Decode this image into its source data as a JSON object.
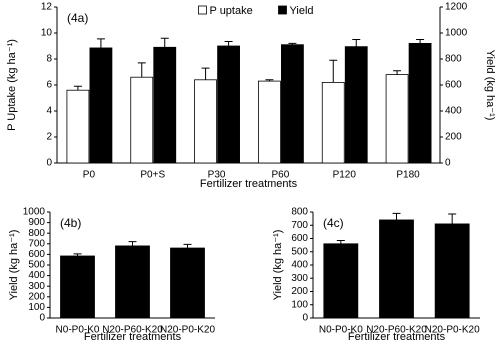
{
  "chart_data": [
    {
      "type": "bar",
      "panel_label": "(4a)",
      "x_label": "Fertilizer treatments",
      "y_label": "P Uptake (kg ha⁻¹)",
      "y2_label": "Yield (kg ha⁻¹)",
      "categories": [
        "P0",
        "P0+S",
        "P30",
        "P60",
        "P120",
        "P180"
      ],
      "series": [
        {
          "name": "P uptake",
          "color": "#ffffff",
          "values": [
            5.6,
            6.6,
            6.4,
            6.3,
            6.2,
            6.8
          ],
          "errors": [
            0.3,
            1.1,
            0.9,
            0.1,
            1.7,
            0.3
          ]
        },
        {
          "name": "Yield",
          "color": "#000000",
          "axis": "y2",
          "values": [
            885,
            890,
            900,
            910,
            895,
            920
          ],
          "errors": [
            70,
            70,
            35,
            10,
            55,
            30
          ]
        }
      ],
      "ylim": [
        0,
        12
      ],
      "yticks": [
        0,
        2,
        4,
        6,
        8,
        10,
        12
      ],
      "y2lim": [
        0,
        1200
      ],
      "y2ticks": [
        0,
        200,
        400,
        600,
        800,
        1000,
        1200
      ],
      "legend": "top"
    },
    {
      "type": "bar",
      "panel_label": "(4b)",
      "x_label": "Fertilizer treatments",
      "y_label": "Yield (kg ha⁻¹)",
      "categories": [
        "N0-P0-K0",
        "N20-P60-K20",
        "N20-P0-K20"
      ],
      "series": [
        {
          "name": "Yield",
          "color": "#000000",
          "values": [
            585,
            680,
            660
          ],
          "errors": [
            20,
            40,
            35
          ]
        }
      ],
      "ylim": [
        0,
        1000
      ],
      "yticks": [
        0,
        100,
        200,
        300,
        400,
        500,
        600,
        700,
        800,
        900,
        1000
      ]
    },
    {
      "type": "bar",
      "panel_label": "(4c)",
      "x_label": "Fertilizer treatments",
      "y_label": "Yield (kg ha⁻¹)",
      "categories": [
        "N0-P0-K0",
        "N20-P60-K20",
        "N20-P0-K20"
      ],
      "series": [
        {
          "name": "Yield",
          "color": "#000000",
          "values": [
            560,
            740,
            710
          ],
          "errors": [
            25,
            50,
            75
          ]
        }
      ],
      "ylim": [
        0,
        800
      ],
      "yticks": [
        0,
        100,
        200,
        300,
        400,
        500,
        600,
        700,
        800
      ]
    }
  ]
}
